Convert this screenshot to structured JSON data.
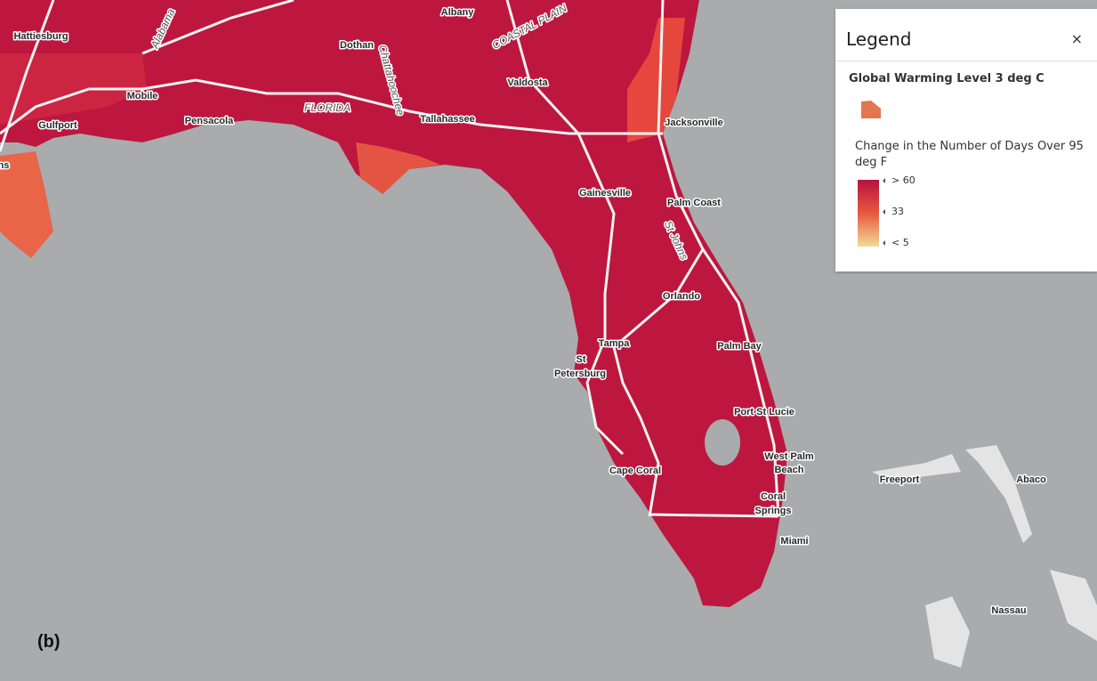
{
  "map": {
    "labels": [
      "Hattiesburg",
      "Alabama",
      "Albany",
      "COASTAL PLAIN",
      "Dothan",
      "Chattahoochee",
      "Valdosta",
      "Mobile",
      "FLORIDA",
      "Pensacola",
      "Gulfport",
      "Tallahassee",
      "Jacksonville",
      "ns",
      "Gainesville",
      "Palm Coast",
      "St Johns",
      "Orlando",
      "Tampa",
      "Palm Bay",
      "St",
      "Petersburg",
      "Port St Lucie",
      "West Palm",
      "Beach",
      "Cape Coral",
      "Coral",
      "Springs",
      "Miami",
      "Freeport",
      "Abaco",
      "Nassau"
    ]
  },
  "panel_label": "(b)",
  "legend": {
    "title": "Legend",
    "close": "×",
    "layer": "Global Warming Level 3 deg C",
    "field": "Change in the Number of Days Over 95 deg F",
    "stops": [
      "> 60",
      "33",
      "< 5"
    ]
  }
}
